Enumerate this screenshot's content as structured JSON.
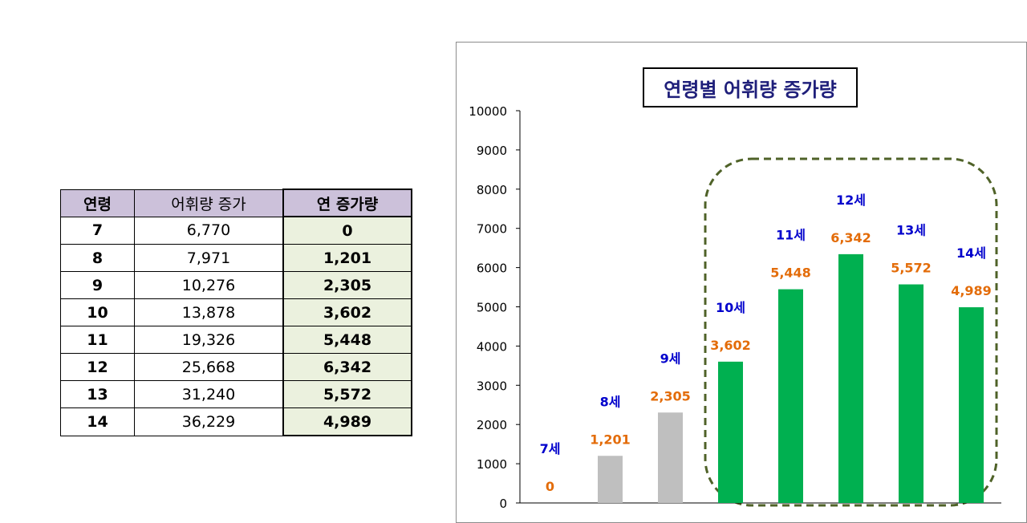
{
  "table": {
    "headers": [
      "연령",
      "어휘량 증가",
      "연 증가량"
    ],
    "rows": [
      [
        "7",
        "6,770",
        "0"
      ],
      [
        "8",
        "7,971",
        "1,201"
      ],
      [
        "9",
        "10,276",
        "2,305"
      ],
      [
        "10",
        "13,878",
        "3,602"
      ],
      [
        "11",
        "19,326",
        "5,448"
      ],
      [
        "12",
        "25,668",
        "6,342"
      ],
      [
        "13",
        "31,240",
        "5,572"
      ],
      [
        "14",
        "36,229",
        "4,989"
      ]
    ]
  },
  "chart_data": {
    "type": "bar",
    "title": "연령별 어휘량 증가량",
    "categories": [
      "7세",
      "8세",
      "9세",
      "10세",
      "11세",
      "12세",
      "13세",
      "14세"
    ],
    "values": [
      0,
      1201,
      2305,
      3602,
      5448,
      6342,
      5572,
      4989
    ],
    "value_labels": [
      "0",
      "1,201",
      "2,305",
      "3,602",
      "5,448",
      "6,342",
      "5,572",
      "4,989"
    ],
    "bar_colors": [
      "#bfbfbf",
      "#bfbfbf",
      "#bfbfbf",
      "#00b050",
      "#00b050",
      "#00b050",
      "#00b050",
      "#00b050"
    ],
    "yticks": [
      "0",
      "1000",
      "2000",
      "3000",
      "4000",
      "5000",
      "6000",
      "7000",
      "8000",
      "9000",
      "10000"
    ],
    "ylim": [
      0,
      10000
    ],
    "grid": false,
    "colors": {
      "category_label": "#0000cc",
      "value_label": "#e36c09",
      "highlight_box": "#4f6228"
    }
  }
}
